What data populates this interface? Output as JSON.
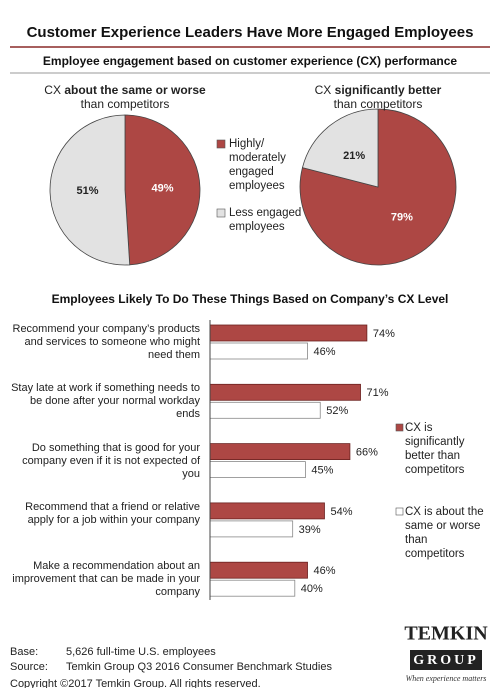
{
  "title": "Customer Experience Leaders Have More Engaged Employees",
  "subtitle": "Employee engagement based on customer experience (CX) performance",
  "chart_data": [
    {
      "type": "pie",
      "title": {
        "lead": "CX",
        "bold": "about the same or worse",
        "rest": "than competitors"
      },
      "categories": [
        "Highly/ moderately engaged employees",
        "Less engaged employees"
      ],
      "colors": [
        "#ad4744",
        "#e2e2e2"
      ],
      "values": [
        49,
        51
      ],
      "value_labels": [
        "49%",
        "51%"
      ]
    },
    {
      "type": "pie",
      "title": {
        "lead": "CX",
        "bold": "significantly better",
        "rest": "than competitors"
      },
      "categories": [
        "Highly/ moderately engaged employees",
        "Less engaged employees"
      ],
      "colors": [
        "#ad4744",
        "#e2e2e2"
      ],
      "values": [
        79,
        21
      ],
      "value_labels": [
        "79%",
        "21%"
      ]
    },
    {
      "type": "bar",
      "orientation": "horizontal",
      "title": "Employees Likely To Do These Things Based on Company’s CX Level",
      "categories": [
        "Recommend your company’s products and services to someone who might need them",
        "Stay late at work if something needs to be done after your normal workday ends",
        "Do something that is good for your company even if it is not expected of you",
        "Recommend that a friend or relative apply for a job within your company",
        "Make a recommendation about an improvement that can be made in your company"
      ],
      "xlim": [
        0,
        100
      ],
      "series": [
        {
          "name": "CX is significantly better than competitors",
          "color": "#ad4744",
          "values": [
            74,
            71,
            66,
            54,
            46
          ],
          "value_labels": [
            "74%",
            "71%",
            "66%",
            "54%",
            "46%"
          ]
        },
        {
          "name": "CX is about the same or worse than competitors",
          "color": "#ffffff",
          "values": [
            46,
            52,
            45,
            39,
            40
          ],
          "value_labels": [
            "46%",
            "52%",
            "45%",
            "39%",
            "40%"
          ]
        }
      ]
    }
  ],
  "footer": {
    "base_label": "Base:",
    "base": "5,626 full-time U.S. employees",
    "source_label": "Source:",
    "source": "Temkin Group Q3 2016 Consumer Benchmark Studies",
    "copyright": "Copyright ©2017 Temkin Group. All rights reserved."
  },
  "logo": {
    "name": "TEMKIN",
    "group": "GROUP",
    "tagline": "When experience matters"
  }
}
